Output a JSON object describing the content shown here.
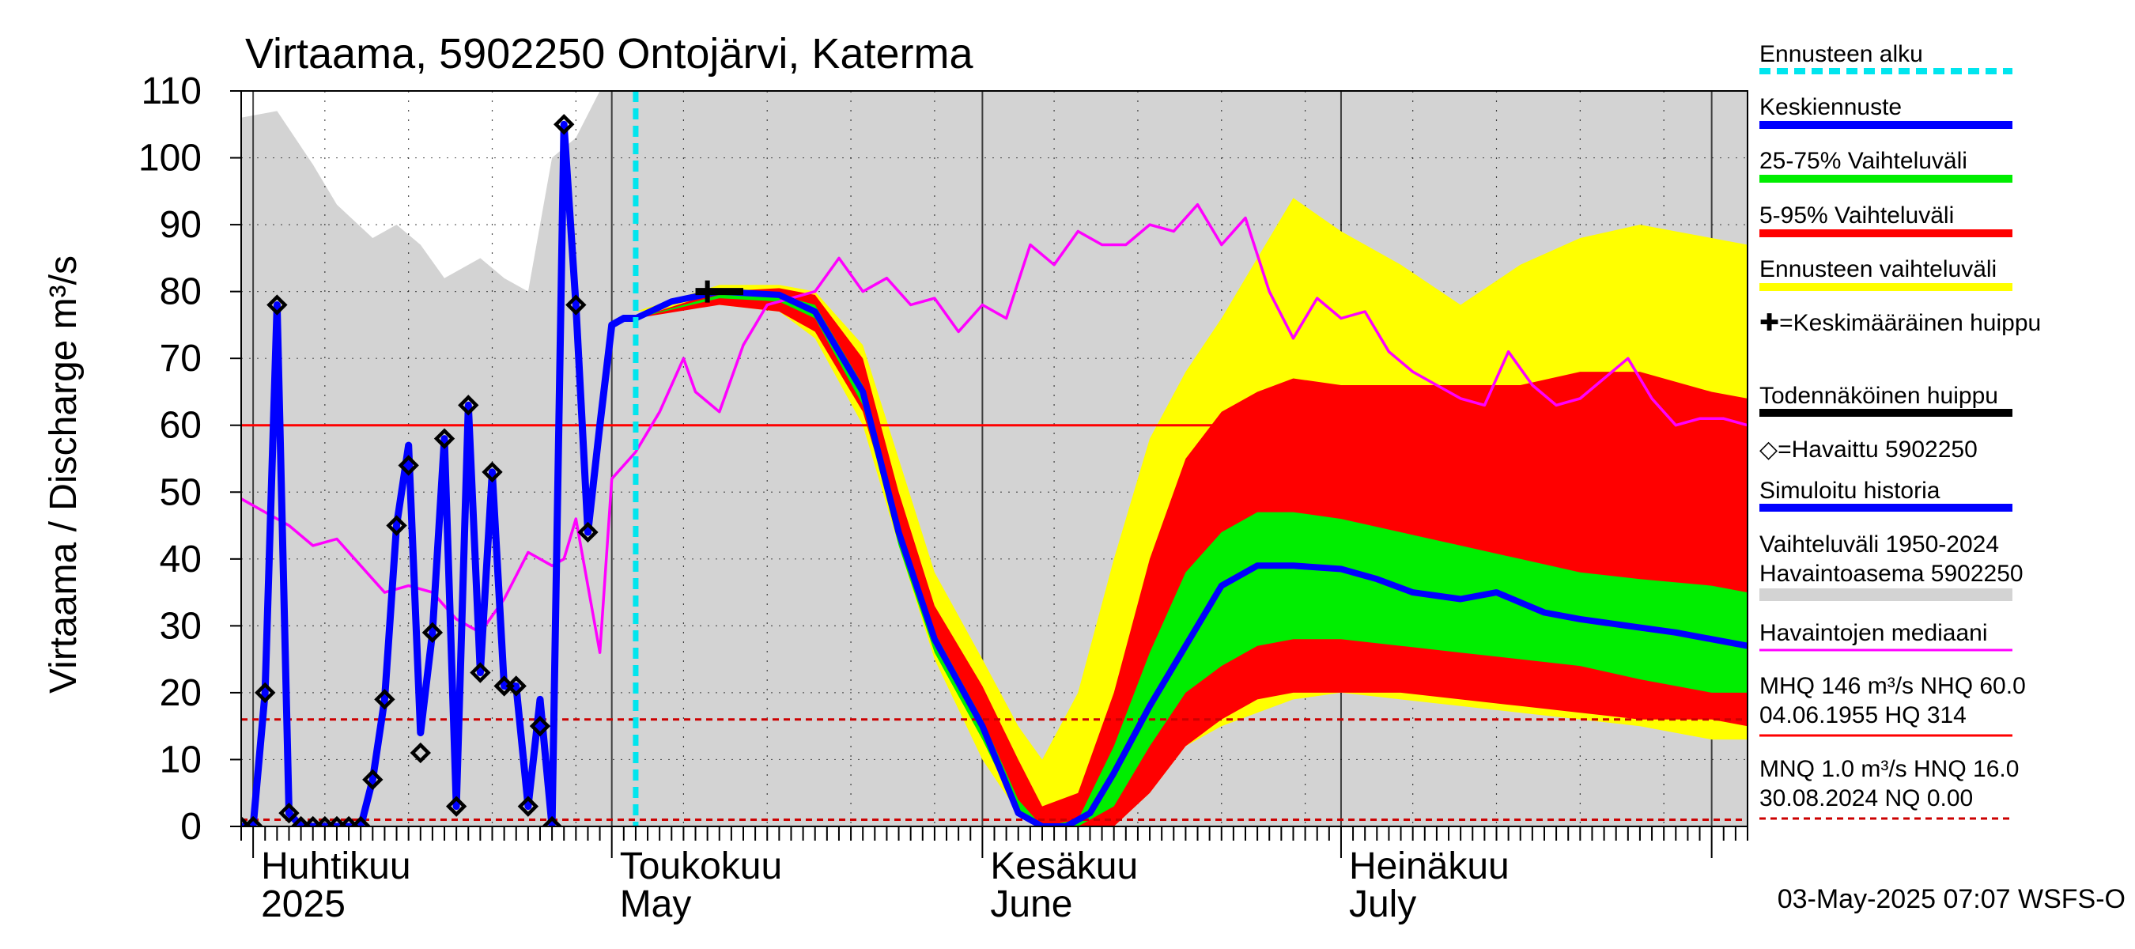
{
  "chart_data": {
    "type": "line",
    "title": "Virtaama, 5902250 Ontojärvi, Katerma",
    "ylabel": "Virtaama / Discharge   m³/s",
    "ylim": [
      0,
      110
    ],
    "yticks": [
      "0",
      "10",
      "20",
      "30",
      "40",
      "50",
      "60",
      "70",
      "80",
      "90",
      "100",
      "110"
    ],
    "xlim": [
      "2025-03-31",
      "2025-08-04"
    ],
    "month_labels": [
      {
        "date": "2025-04-01",
        "fi": "Huhtikuu",
        "en": "2025"
      },
      {
        "date": "2025-05-01",
        "fi": "Toukokuu",
        "en": "May"
      },
      {
        "date": "2025-06-01",
        "fi": "Kesäkuu",
        "en": "June"
      },
      {
        "date": "2025-07-01",
        "fi": "Heinäkuu",
        "en": "July"
      }
    ],
    "forecast_start": "2025-05-03",
    "reference_lines": [
      {
        "value": 60.0,
        "style": "solid",
        "color": "#ff0000"
      },
      {
        "value": 16.0,
        "style": "dashed",
        "color": "#cc0000"
      },
      {
        "value": 1.0,
        "style": "dashed",
        "color": "#cc0000"
      }
    ],
    "history_range_1950_2024": {
      "x": [
        "2025-03-31",
        "2025-04-03",
        "2025-04-06",
        "2025-04-08",
        "2025-04-11",
        "2025-04-13",
        "2025-04-15",
        "2025-04-17",
        "2025-04-20",
        "2025-04-22",
        "2025-04-24",
        "2025-04-26",
        "2025-04-28",
        "2025-04-30",
        "2025-08-04"
      ],
      "upper": [
        106,
        107,
        99,
        93,
        88,
        90,
        87,
        82,
        85,
        82,
        80,
        100,
        103,
        110,
        110
      ],
      "lower": [
        0,
        0,
        0,
        0,
        0,
        0,
        0,
        0,
        0,
        0,
        0,
        0,
        0,
        0,
        0
      ]
    },
    "forecast_range": {
      "x": [
        "2025-05-02",
        "2025-05-03",
        "2025-05-10",
        "2025-05-15",
        "2025-05-18",
        "2025-05-22",
        "2025-05-25",
        "2025-05-28",
        "2025-06-01",
        "2025-06-04",
        "2025-06-06",
        "2025-06-09",
        "2025-06-12",
        "2025-06-15",
        "2025-06-18",
        "2025-06-21",
        "2025-06-24",
        "2025-06-27",
        "2025-07-01",
        "2025-07-06",
        "2025-07-11",
        "2025-07-16",
        "2025-07-21",
        "2025-07-26",
        "2025-08-01",
        "2025-08-04"
      ],
      "upper": [
        76,
        77,
        81,
        81,
        80,
        72,
        55,
        38,
        25,
        15,
        10,
        20,
        40,
        58,
        68,
        76,
        85,
        94,
        89,
        84,
        78,
        84,
        88,
        90,
        88,
        87
      ],
      "lower": [
        76,
        77,
        78,
        77,
        73,
        60,
        42,
        25,
        10,
        2,
        0,
        0,
        0,
        5,
        12,
        15,
        17,
        19,
        20,
        19,
        18,
        17,
        16,
        15,
        13,
        13
      ]
    },
    "range_5_95": {
      "x": [
        "2025-05-03",
        "2025-05-10",
        "2025-05-15",
        "2025-05-18",
        "2025-05-22",
        "2025-05-25",
        "2025-05-28",
        "2025-06-01",
        "2025-06-04",
        "2025-06-06",
        "2025-06-09",
        "2025-06-12",
        "2025-06-15",
        "2025-06-18",
        "2025-06-21",
        "2025-06-24",
        "2025-06-27",
        "2025-07-01",
        "2025-07-06",
        "2025-07-11",
        "2025-07-16",
        "2025-07-21",
        "2025-07-26",
        "2025-08-01",
        "2025-08-04"
      ],
      "upper": [
        76,
        80,
        80.5,
        79.5,
        70,
        50,
        33,
        21,
        10,
        3,
        5,
        20,
        40,
        55,
        62,
        65,
        67,
        66,
        66,
        66,
        66,
        68,
        68,
        65,
        64
      ],
      "lower": [
        76,
        78,
        77,
        74,
        62,
        44,
        27,
        14,
        3,
        0,
        0,
        0,
        5,
        12,
        16,
        19,
        20,
        20,
        20,
        19,
        18,
        17,
        16,
        16,
        15
      ]
    },
    "range_25_75": {
      "x": [
        "2025-05-03",
        "2025-05-10",
        "2025-05-15",
        "2025-05-18",
        "2025-05-22",
        "2025-05-25",
        "2025-05-28",
        "2025-06-01",
        "2025-06-04",
        "2025-06-06",
        "2025-06-09",
        "2025-06-12",
        "2025-06-15",
        "2025-06-18",
        "2025-06-21",
        "2025-06-24",
        "2025-06-27",
        "2025-07-01",
        "2025-07-06",
        "2025-07-11",
        "2025-07-16",
        "2025-07-21",
        "2025-07-26",
        "2025-08-01",
        "2025-08-04"
      ],
      "upper": [
        76,
        79.5,
        79.5,
        78,
        66,
        45,
        29,
        16,
        4,
        0,
        1,
        12,
        26,
        38,
        44,
        47,
        47,
        46,
        44,
        42,
        40,
        38,
        37,
        36,
        35
      ],
      "lower": [
        76,
        79,
        78.5,
        76,
        63,
        42,
        26,
        13,
        2,
        0,
        0,
        3,
        12,
        20,
        24,
        27,
        28,
        28,
        27,
        26,
        25,
        24,
        22,
        20,
        20
      ]
    },
    "series": [
      {
        "name": "Keskiennuste",
        "color": "#0000ff",
        "x": [
          "2025-05-03",
          "2025-05-06",
          "2025-05-10",
          "2025-05-15",
          "2025-05-18",
          "2025-05-22",
          "2025-05-25",
          "2025-05-28",
          "2025-06-01",
          "2025-06-04",
          "2025-06-06",
          "2025-06-08",
          "2025-06-10",
          "2025-06-12",
          "2025-06-15",
          "2025-06-18",
          "2025-06-21",
          "2025-06-24",
          "2025-06-27",
          "2025-07-01",
          "2025-07-04",
          "2025-07-07",
          "2025-07-11",
          "2025-07-14",
          "2025-07-18",
          "2025-07-21",
          "2025-07-25",
          "2025-07-29",
          "2025-08-04"
        ],
        "y": [
          76,
          78.5,
          80,
          79.5,
          77,
          65,
          44,
          28,
          15,
          2,
          0,
          0,
          2,
          8,
          18,
          27,
          36,
          39,
          39,
          38.5,
          37,
          35,
          34,
          35,
          32,
          31,
          30,
          29,
          27
        ]
      },
      {
        "name": "Simuloitu historia",
        "color": "#0000ff",
        "x": [
          "2025-03-31",
          "2025-04-01",
          "2025-04-02",
          "2025-04-03",
          "2025-04-04",
          "2025-04-05",
          "2025-04-06",
          "2025-04-07",
          "2025-04-08",
          "2025-04-09",
          "2025-04-10",
          "2025-04-11",
          "2025-04-12",
          "2025-04-13",
          "2025-04-14",
          "2025-04-15",
          "2025-04-16",
          "2025-04-17",
          "2025-04-18",
          "2025-04-19",
          "2025-04-20",
          "2025-04-21",
          "2025-04-22",
          "2025-04-23",
          "2025-04-24",
          "2025-04-25",
          "2025-04-26",
          "2025-04-27",
          "2025-04-28",
          "2025-04-29",
          "2025-04-30",
          "2025-05-01",
          "2025-05-02",
          "2025-05-03"
        ],
        "y": [
          0,
          0,
          20,
          78,
          2,
          0,
          0,
          0,
          0,
          0,
          0,
          7,
          19,
          45,
          57,
          14,
          29,
          58,
          3,
          63,
          23,
          53,
          21,
          21,
          3,
          19,
          0,
          105,
          78,
          44,
          60,
          75,
          76,
          76
        ]
      },
      {
        "name": "Havaintojen mediaani",
        "color": "#ff00ff",
        "x": [
          "2025-03-31",
          "2025-04-02",
          "2025-04-04",
          "2025-04-06",
          "2025-04-08",
          "2025-04-10",
          "2025-04-12",
          "2025-04-14",
          "2025-04-16",
          "2025-04-18",
          "2025-04-20",
          "2025-04-22",
          "2025-04-24",
          "2025-04-26",
          "2025-04-27",
          "2025-04-28",
          "2025-04-30",
          "2025-05-01",
          "2025-05-03",
          "2025-05-05",
          "2025-05-07",
          "2025-05-08",
          "2025-05-10",
          "2025-05-12",
          "2025-05-14",
          "2025-05-16",
          "2025-05-18",
          "2025-05-20",
          "2025-05-22",
          "2025-05-24",
          "2025-05-26",
          "2025-05-28",
          "2025-05-30",
          "2025-06-01",
          "2025-06-03",
          "2025-06-05",
          "2025-06-07",
          "2025-06-09",
          "2025-06-11",
          "2025-06-13",
          "2025-06-15",
          "2025-06-17",
          "2025-06-19",
          "2025-06-21",
          "2025-06-23",
          "2025-06-25",
          "2025-06-27",
          "2025-06-29",
          "2025-07-01",
          "2025-07-03",
          "2025-07-05",
          "2025-07-07",
          "2025-07-09",
          "2025-07-11",
          "2025-07-13",
          "2025-07-15",
          "2025-07-17",
          "2025-07-19",
          "2025-07-21",
          "2025-07-23",
          "2025-07-25",
          "2025-07-27",
          "2025-07-29",
          "2025-07-31",
          "2025-08-02",
          "2025-08-04"
        ],
        "y": [
          49,
          47,
          45,
          42,
          43,
          39,
          35,
          36,
          35,
          31,
          29,
          34,
          41,
          39,
          40,
          46,
          26,
          52,
          56,
          62,
          70,
          65,
          62,
          72,
          78,
          79,
          80,
          85,
          80,
          82,
          78,
          79,
          74,
          78,
          76,
          87,
          84,
          89,
          87,
          87,
          90,
          89,
          93,
          87,
          91,
          80,
          73,
          79,
          76,
          77,
          71,
          68,
          66,
          64,
          63,
          71,
          66,
          63,
          64,
          67,
          70,
          64,
          60,
          61,
          61,
          60
        ]
      }
    ],
    "observed": {
      "name": "Havaittu 5902250",
      "x": [
        "2025-03-31",
        "2025-04-01",
        "2025-04-02",
        "2025-04-03",
        "2025-04-04",
        "2025-04-05",
        "2025-04-06",
        "2025-04-07",
        "2025-04-08",
        "2025-04-09",
        "2025-04-10",
        "2025-04-11",
        "2025-04-12",
        "2025-04-13",
        "2025-04-14",
        "2025-04-15",
        "2025-04-16",
        "2025-04-17",
        "2025-04-18",
        "2025-04-19",
        "2025-04-20",
        "2025-04-21",
        "2025-04-22",
        "2025-04-23",
        "2025-04-24",
        "2025-04-25",
        "2025-04-26",
        "2025-04-27",
        "2025-04-28",
        "2025-04-29"
      ],
      "y": [
        0,
        0,
        20,
        78,
        2,
        0,
        0,
        0,
        0,
        0,
        0,
        7,
        19,
        45,
        54,
        11,
        29,
        58,
        3,
        63,
        23,
        53,
        21,
        21,
        3,
        15,
        0,
        105,
        78,
        44
      ]
    },
    "mean_peak": {
      "x": "2025-05-09",
      "y": 80
    },
    "probable_peak": {
      "x": [
        "2025-05-08",
        "2025-05-12"
      ],
      "y": 80
    },
    "legend": [
      {
        "label": "Ennusteen alku",
        "color": "#00e5ee",
        "kind": "dashed"
      },
      {
        "label": "Keskiennuste",
        "color": "#0000ff",
        "kind": "line"
      },
      {
        "label": "25-75% Vaihteluväli",
        "color": "#00ee00",
        "kind": "line"
      },
      {
        "label": "5-95% Vaihteluväli",
        "color": "#ff0000",
        "kind": "line"
      },
      {
        "label": "Ennusteen vaihteluväli",
        "color": "#ffff00",
        "kind": "line"
      },
      {
        "label": "✚=Keskimääräinen huippu",
        "color": "#000000",
        "kind": "none"
      },
      {
        "label": "Todennäköinen huippu",
        "color": "#000000",
        "kind": "line"
      },
      {
        "label": "◇=Havaittu 5902250",
        "color": "#000000",
        "kind": "none"
      },
      {
        "label": "Simuloitu historia",
        "color": "#0000ff",
        "kind": "line"
      },
      {
        "label": "Vaihteluväli 1950-2024\n Havaintoasema 5902250",
        "color": "#d3d3d3",
        "kind": "line"
      },
      {
        "label": "Havaintojen mediaani",
        "color": "#ff00ff",
        "kind": "thin"
      },
      {
        "label": "MHQ  146 m³/s NHQ 60.0\n04.06.1955 HQ  314",
        "color": "#ff0000",
        "kind": "thin"
      },
      {
        "label": "MNQ  1.0 m³/s HNQ 16.0\n30.08.2024 NQ 0.00",
        "color": "#cc0000",
        "kind": "dashed-thin"
      }
    ],
    "footer": "03-May-2025 07:07 WSFS-O",
    "colors": {
      "history": "#d3d3d3",
      "forecast_range": "#ffff00",
      "range_5_95": "#ff0000",
      "range_25_75": "#00ee00",
      "mean": "#0000ff",
      "median": "#ff00ff",
      "forecast_start": "#00e5ee"
    }
  }
}
